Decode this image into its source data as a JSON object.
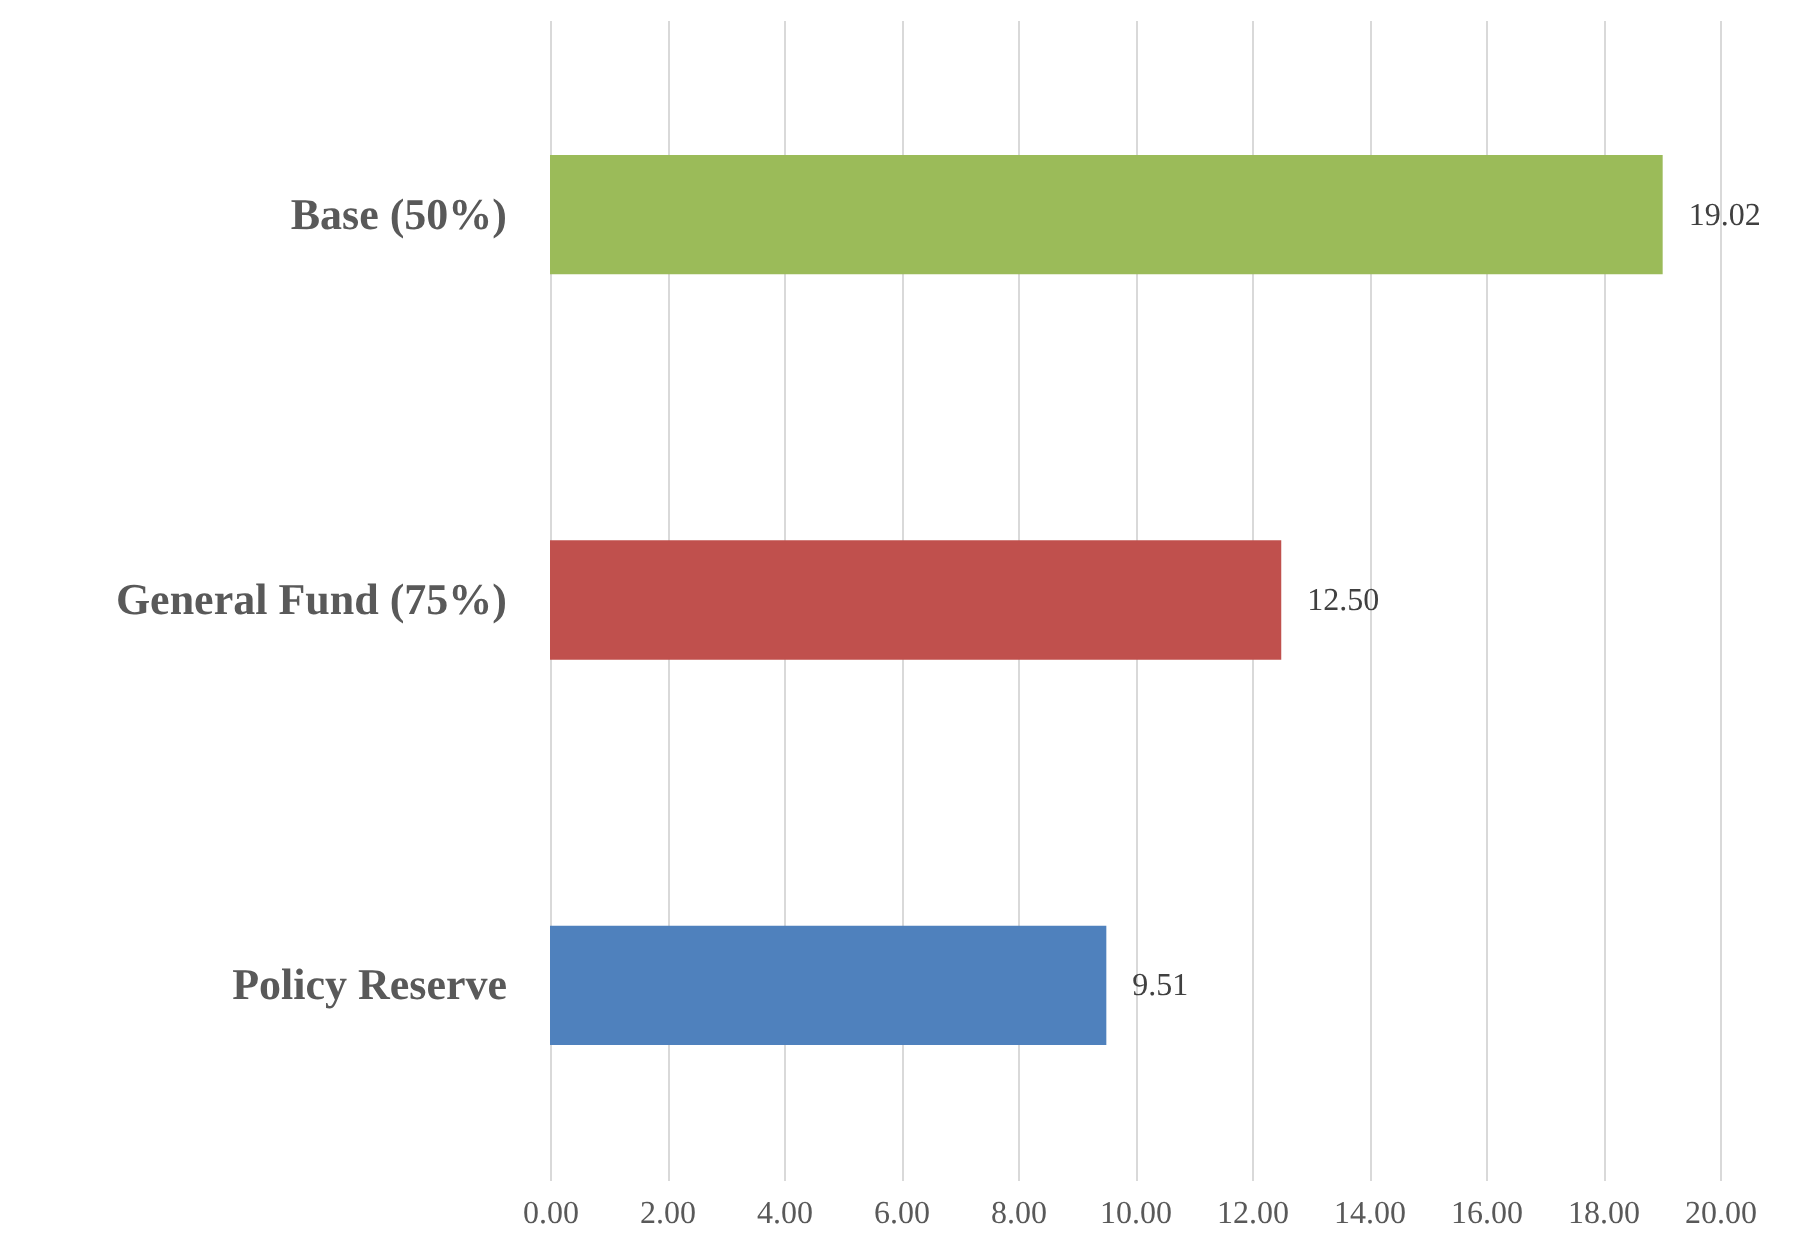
{
  "chart_data": {
    "type": "bar",
    "orientation": "horizontal",
    "categories": [
      "Base (50%)",
      "General Fund (75%)",
      "Policy Reserve"
    ],
    "values": [
      19.02,
      12.5,
      9.51
    ],
    "colors": [
      "#9bbb59",
      "#c0504d",
      "#4f81bd"
    ],
    "value_labels": [
      "19.02",
      "12.50",
      "9.51"
    ],
    "xlim": [
      0,
      20
    ],
    "xticks": [
      {
        "value": 0,
        "label": "0.00"
      },
      {
        "value": 2,
        "label": "2.00"
      },
      {
        "value": 4,
        "label": "4.00"
      },
      {
        "value": 6,
        "label": "6.00"
      },
      {
        "value": 8,
        "label": "8.00"
      },
      {
        "value": 10,
        "label": "10.00"
      },
      {
        "value": 12,
        "label": "12.00"
      },
      {
        "value": 14,
        "label": "14.00"
      },
      {
        "value": 16,
        "label": "16.00"
      },
      {
        "value": 18,
        "label": "18.00"
      },
      {
        "value": 20,
        "label": "20.00"
      }
    ],
    "grid": "x"
  }
}
